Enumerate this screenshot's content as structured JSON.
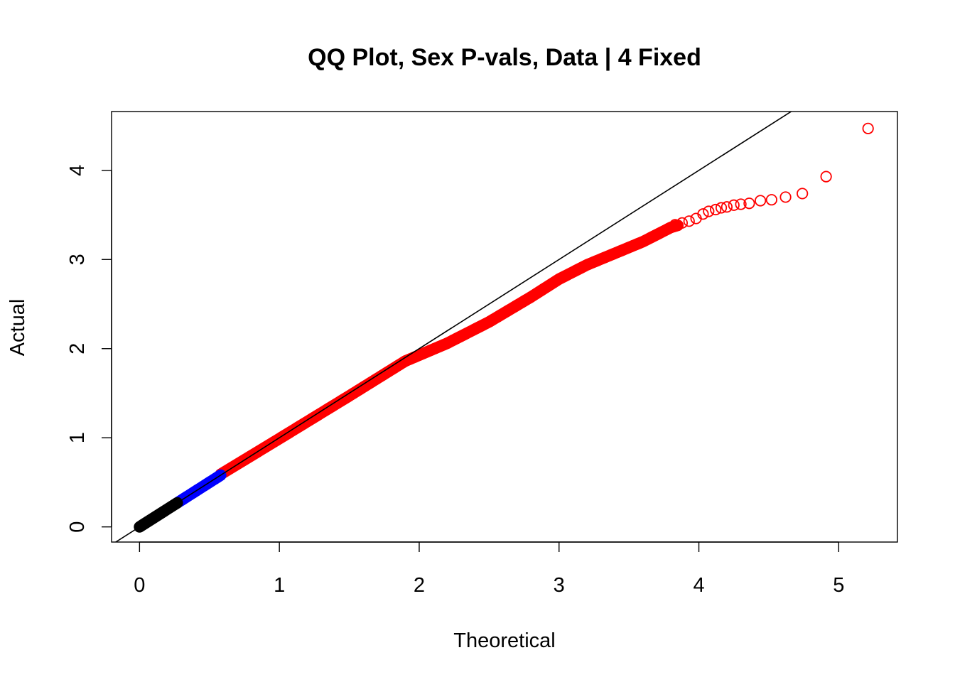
{
  "chart_data": {
    "type": "scatter",
    "title": "QQ Plot, Sex P-vals, Data | 4 Fixed",
    "xlabel": "Theoretical",
    "ylabel": "Actual",
    "xlim": [
      -0.2,
      5.42
    ],
    "ylim": [
      -0.17,
      4.66
    ],
    "x_ticks": [
      0,
      1,
      2,
      3,
      4,
      5
    ],
    "y_ticks": [
      0,
      1,
      2,
      3,
      4
    ],
    "x_tick_labels": [
      "0",
      "1",
      "2",
      "3",
      "4",
      "5"
    ],
    "y_tick_labels": [
      "0",
      "1",
      "2",
      "3",
      "4"
    ],
    "grid": false,
    "legend": false,
    "reference_line": {
      "slope": 1,
      "intercept": 0,
      "color": "#000000"
    },
    "series": [
      {
        "color": "#000000",
        "filled": true,
        "x_range": [
          0.0,
          0.27
        ],
        "description_points": [
          [
            0.0,
            0.0
          ],
          [
            0.27,
            0.27
          ]
        ]
      },
      {
        "color": "#0000ff",
        "filled": true,
        "x_range": [
          0.27,
          0.58
        ],
        "description_points": [
          [
            0.27,
            0.27
          ],
          [
            0.58,
            0.58
          ]
        ]
      },
      {
        "color": "#ff0000",
        "filled": false,
        "x_range": [
          0.58,
          5.21
        ],
        "curve": [
          [
            0.58,
            0.59
          ],
          [
            1.0,
            0.99
          ],
          [
            1.5,
            1.47
          ],
          [
            1.9,
            1.86
          ],
          [
            2.2,
            2.06
          ],
          [
            2.5,
            2.3
          ],
          [
            2.8,
            2.58
          ],
          [
            3.0,
            2.78
          ],
          [
            3.2,
            2.94
          ],
          [
            3.4,
            3.07
          ],
          [
            3.6,
            3.2
          ],
          [
            3.8,
            3.36
          ],
          [
            3.95,
            3.43
          ]
        ],
        "tail_points": [
          [
            3.83,
            3.39
          ],
          [
            3.88,
            3.41
          ],
          [
            3.93,
            3.43
          ],
          [
            3.98,
            3.46
          ],
          [
            4.03,
            3.51
          ],
          [
            4.07,
            3.54
          ],
          [
            4.12,
            3.56
          ],
          [
            4.16,
            3.58
          ],
          [
            4.2,
            3.59
          ],
          [
            4.25,
            3.61
          ],
          [
            4.3,
            3.62
          ],
          [
            4.36,
            3.63
          ],
          [
            4.44,
            3.66
          ],
          [
            4.52,
            3.67
          ],
          [
            4.62,
            3.7
          ],
          [
            4.74,
            3.74
          ],
          [
            4.91,
            3.93
          ],
          [
            5.21,
            4.47
          ]
        ]
      }
    ]
  }
}
